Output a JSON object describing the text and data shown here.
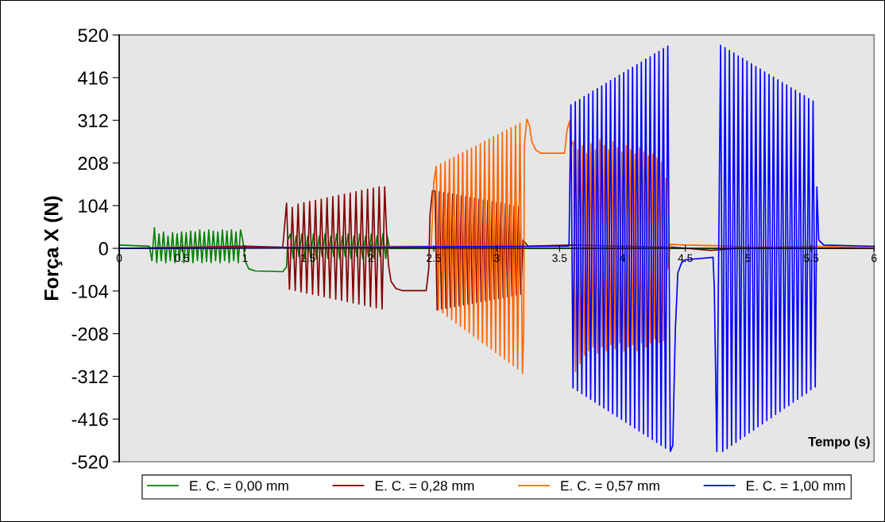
{
  "chart_data": {
    "type": "line",
    "xlabel": "Tempo (s)",
    "ylabel": "Força X (N)",
    "xlim": [
      0,
      6
    ],
    "xticks": [
      0,
      0.5,
      1,
      1.5,
      2,
      2.5,
      3,
      3.5,
      4,
      4.5,
      5,
      5.5,
      6
    ],
    "ylim": [
      -520,
      520
    ],
    "yticks": [
      -520,
      -416,
      -312,
      -208,
      -104,
      0,
      104,
      208,
      312,
      416,
      520
    ],
    "grid": false,
    "legend": "bottom",
    "marker": "none",
    "line_style": "solid",
    "series": [
      {
        "name": "E. C. = 0,00 mm",
        "color": "#008000",
        "x": [
          0,
          0.24,
          0.26,
          0.28,
          0.298,
          0.316,
          0.334,
          0.352,
          0.37,
          0.388,
          0.406,
          0.424,
          0.442,
          0.46,
          0.478,
          0.496,
          0.514,
          0.532,
          0.55,
          0.568,
          0.586,
          0.604,
          0.622,
          0.64,
          0.658,
          0.676,
          0.694,
          0.712,
          0.73,
          0.748,
          0.766,
          0.784,
          0.802,
          0.82,
          0.838,
          0.856,
          0.874,
          0.892,
          0.91,
          0.928,
          0.946,
          0.964,
          0.982,
          1.0,
          1.03,
          1.08,
          1.3,
          1.33,
          1.34,
          1.36,
          1.383,
          1.406,
          1.429,
          1.452,
          1.475,
          1.498,
          1.521,
          1.544,
          1.567,
          1.59,
          1.613,
          1.636,
          1.659,
          1.682,
          1.705,
          1.728,
          1.751,
          1.774,
          1.797,
          1.82,
          1.843,
          1.866,
          1.889,
          1.912,
          1.935,
          1.958,
          1.981,
          2.004,
          2.027,
          2.05,
          2.073,
          2.096,
          2.119,
          2.13,
          2.15,
          6.0
        ],
        "values": [
          8,
          5,
          -30,
          50,
          -35,
          35,
          -30,
          40,
          -35,
          30,
          -30,
          38,
          -35,
          35,
          -30,
          40,
          -35,
          38,
          -32,
          42,
          -35,
          40,
          -30,
          45,
          -35,
          40,
          -32,
          45,
          -35,
          42,
          -30,
          40,
          -35,
          45,
          -30,
          42,
          -35,
          45,
          -30,
          40,
          -35,
          45,
          20,
          -30,
          -50,
          -55,
          -57,
          -45,
          20,
          35,
          -25,
          30,
          -20,
          35,
          -25,
          30,
          -20,
          35,
          -25,
          30,
          -20,
          35,
          -25,
          30,
          -20,
          35,
          -25,
          30,
          -20,
          35,
          -25,
          30,
          -20,
          35,
          -25,
          30,
          -20,
          35,
          -25,
          30,
          -20,
          35,
          -25,
          30,
          0,
          0
        ]
      },
      {
        "name": "E. C. = 0,28 mm",
        "color": "#800000",
        "x": [
          0,
          1.0,
          1.3,
          1.33,
          1.353,
          1.376,
          1.399,
          1.422,
          1.445,
          1.468,
          1.491,
          1.514,
          1.537,
          1.56,
          1.583,
          1.606,
          1.629,
          1.652,
          1.675,
          1.698,
          1.721,
          1.744,
          1.767,
          1.79,
          1.813,
          1.836,
          1.859,
          1.882,
          1.905,
          1.928,
          1.951,
          1.974,
          1.997,
          2.02,
          2.043,
          2.066,
          2.089,
          2.11,
          2.125,
          2.14,
          2.16,
          2.2,
          2.25,
          2.44,
          2.46,
          2.47,
          2.49,
          2.51,
          2.527,
          2.545,
          2.562,
          2.58,
          2.597,
          2.615,
          2.632,
          2.65,
          2.667,
          2.685,
          2.702,
          2.72,
          2.737,
          2.755,
          2.772,
          2.79,
          2.807,
          2.825,
          2.842,
          2.86,
          2.877,
          2.895,
          2.912,
          2.93,
          2.947,
          2.965,
          2.982,
          3.0,
          3.017,
          3.035,
          3.052,
          3.07,
          3.087,
          3.105,
          3.122,
          3.14,
          3.157,
          3.175,
          3.192,
          3.21,
          3.25,
          3.6,
          4.0,
          4.4,
          4.7,
          5.0,
          6.0
        ],
        "values": [
          0,
          5,
          3,
          110,
          -100,
          100,
          -103,
          108,
          -106,
          111,
          -109,
          114,
          -112,
          117,
          -115,
          120,
          -118,
          123,
          -121,
          126,
          -124,
          129,
          -127,
          132,
          -130,
          135,
          -133,
          138,
          -136,
          141,
          -139,
          144,
          -142,
          147,
          -145,
          150,
          -148,
          150,
          40,
          -40,
          -80,
          -98,
          -103,
          -103,
          -50,
          80,
          140,
          140,
          -150,
          138,
          -148,
          136,
          -146,
          134,
          -144,
          132,
          -142,
          130,
          -140,
          128,
          -138,
          126,
          -136,
          124,
          -134,
          122,
          -132,
          120,
          -130,
          118,
          -128,
          116,
          -126,
          114,
          -124,
          112,
          -122,
          110,
          -120,
          108,
          -118,
          106,
          -116,
          104,
          -114,
          102,
          -112,
          20,
          5,
          8,
          5,
          3,
          -5,
          2,
          0
        ]
      },
      {
        "name": "E. C. = 0,57 mm",
        "color": "#ff6600",
        "x": [
          0,
          2.48,
          2.5,
          2.52,
          2.537,
          2.555,
          2.572,
          2.59,
          2.607,
          2.625,
          2.642,
          2.66,
          2.677,
          2.695,
          2.712,
          2.73,
          2.747,
          2.765,
          2.782,
          2.8,
          2.817,
          2.835,
          2.852,
          2.87,
          2.887,
          2.905,
          2.922,
          2.94,
          2.957,
          2.975,
          2.992,
          3.01,
          3.027,
          3.045,
          3.062,
          3.08,
          3.097,
          3.115,
          3.132,
          3.15,
          3.167,
          3.185,
          3.205,
          3.215,
          3.22,
          3.24,
          3.26,
          3.28,
          3.31,
          3.35,
          3.54,
          3.56,
          3.58,
          3.59,
          3.61,
          3.627,
          3.645,
          3.662,
          3.68,
          3.697,
          3.715,
          3.732,
          3.75,
          3.767,
          3.785,
          3.802,
          3.82,
          3.837,
          3.855,
          3.872,
          3.89,
          3.907,
          3.925,
          3.942,
          3.96,
          3.977,
          3.995,
          4.012,
          4.03,
          4.047,
          4.065,
          4.082,
          4.1,
          4.117,
          4.135,
          4.152,
          4.17,
          4.187,
          4.205,
          4.222,
          4.24,
          4.257,
          4.275,
          4.292,
          4.31,
          4.327,
          4.345,
          4.36,
          4.38,
          4.5,
          4.8,
          5.0,
          5.5,
          6.0
        ],
        "values": [
          0,
          5,
          160,
          200,
          -150,
          206,
          -158,
          211,
          -166,
          217,
          -174,
          222,
          -182,
          228,
          -190,
          233,
          -198,
          239,
          -206,
          244,
          -214,
          250,
          -222,
          255,
          -230,
          261,
          -238,
          266,
          -246,
          272,
          -254,
          277,
          -262,
          283,
          -270,
          288,
          -278,
          294,
          -286,
          299,
          -294,
          305,
          -305,
          -200,
          250,
          315,
          300,
          260,
          240,
          232,
          232,
          290,
          310,
          250,
          260,
          -300,
          240,
          -280,
          250,
          -260,
          230,
          -250,
          255,
          -240,
          240,
          -255,
          265,
          -240,
          250,
          -250,
          240,
          -235,
          260,
          -245,
          245,
          -230,
          235,
          -250,
          250,
          -240,
          240,
          -235,
          230,
          -250,
          245,
          -230,
          235,
          -240,
          225,
          -230,
          230,
          -220,
          220,
          -230,
          210,
          -225,
          170,
          -50,
          10,
          8,
          6,
          3,
          5,
          2
        ]
      },
      {
        "name": "E. C. = 1,00 mm",
        "color": "#0000ff",
        "x": [
          0,
          3.5,
          3.575,
          3.59,
          3.607,
          3.625,
          3.642,
          3.66,
          3.677,
          3.695,
          3.712,
          3.73,
          3.747,
          3.765,
          3.782,
          3.8,
          3.817,
          3.835,
          3.852,
          3.87,
          3.887,
          3.905,
          3.922,
          3.94,
          3.957,
          3.975,
          3.992,
          4.01,
          4.027,
          4.045,
          4.062,
          4.08,
          4.097,
          4.115,
          4.132,
          4.15,
          4.167,
          4.185,
          4.202,
          4.22,
          4.237,
          4.255,
          4.272,
          4.29,
          4.307,
          4.325,
          4.342,
          4.36,
          4.38,
          4.4,
          4.42,
          4.44,
          4.47,
          4.5,
          4.72,
          4.73,
          4.75,
          4.78,
          4.797,
          4.815,
          4.832,
          4.85,
          4.867,
          4.885,
          4.902,
          4.92,
          4.937,
          4.955,
          4.972,
          4.99,
          5.007,
          5.025,
          5.042,
          5.06,
          5.077,
          5.095,
          5.112,
          5.13,
          5.147,
          5.165,
          5.182,
          5.2,
          5.217,
          5.235,
          5.252,
          5.27,
          5.287,
          5.305,
          5.322,
          5.34,
          5.357,
          5.375,
          5.392,
          5.41,
          5.427,
          5.445,
          5.462,
          5.48,
          5.497,
          5.515,
          5.532,
          5.545,
          5.56,
          5.6,
          6.0
        ],
        "values": [
          0,
          5,
          5,
          350,
          -340,
          357,
          -347,
          363,
          -354,
          370,
          -361,
          376,
          -368,
          383,
          -375,
          389,
          -382,
          396,
          -389,
          402,
          -396,
          409,
          -403,
          415,
          -410,
          422,
          -417,
          428,
          -424,
          435,
          -431,
          441,
          -438,
          448,
          -445,
          454,
          -452,
          461,
          -459,
          467,
          -466,
          474,
          -473,
          480,
          -480,
          487,
          -487,
          493,
          -495,
          -480,
          -200,
          -60,
          -35,
          -28,
          -22,
          -100,
          -495,
          495,
          -495,
          489,
          -488,
          482,
          -480,
          476,
          -473,
          469,
          -465,
          463,
          -458,
          456,
          -450,
          450,
          -443,
          443,
          -435,
          437,
          -428,
          430,
          -420,
          424,
          -413,
          417,
          -405,
          411,
          -398,
          404,
          -390,
          398,
          -383,
          391,
          -375,
          385,
          -368,
          378,
          -360,
          372,
          -353,
          365,
          -345,
          359,
          -338,
          150,
          20,
          8,
          5
        ]
      }
    ]
  }
}
